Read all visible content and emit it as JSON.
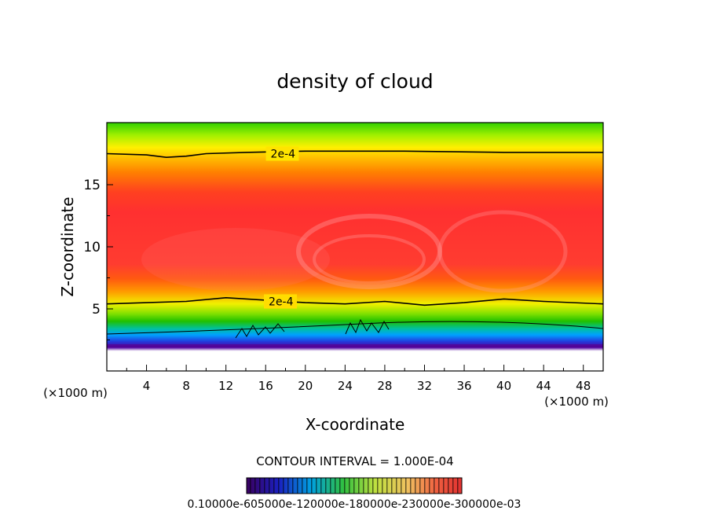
{
  "chart_data": {
    "type": "heatmap",
    "title": "density of cloud",
    "xlabel": "X-coordinate",
    "ylabel": "Z-coordinate",
    "x_unit_note": "(×1000 m)",
    "x_unit_note_right": "(×1000 m)",
    "xlim": [
      0,
      50
    ],
    "ylim": [
      0,
      20
    ],
    "x_ticks": [
      4,
      8,
      12,
      16,
      20,
      24,
      28,
      32,
      36,
      40,
      44,
      48
    ],
    "y_ticks": [
      5,
      10,
      15
    ],
    "colormap": [
      "#5a0080",
      "#2020d0",
      "#00a0ff",
      "#20c000",
      "#90e000",
      "#ffff00",
      "#ffb000",
      "#ff6a00",
      "#ff3030"
    ],
    "contour_labels": [
      {
        "text": "2e-4",
        "x": 16.5,
        "z": 17.5
      },
      {
        "text": "2e-4",
        "x": 16.3,
        "z": 5.6
      }
    ],
    "upper_contour_z": [
      [
        0,
        17.5
      ],
      [
        4,
        17.4
      ],
      [
        6,
        17.2
      ],
      [
        8,
        17.3
      ],
      [
        10,
        17.5
      ],
      [
        14,
        17.6
      ],
      [
        20,
        17.7
      ],
      [
        30,
        17.7
      ],
      [
        40,
        17.6
      ],
      [
        50,
        17.6
      ]
    ],
    "lower_contour_z": [
      [
        0,
        5.4
      ],
      [
        4,
        5.5
      ],
      [
        8,
        5.6
      ],
      [
        12,
        5.9
      ],
      [
        16,
        5.7
      ],
      [
        20,
        5.5
      ],
      [
        24,
        5.4
      ],
      [
        28,
        5.6
      ],
      [
        32,
        5.3
      ],
      [
        36,
        5.5
      ],
      [
        40,
        5.8
      ],
      [
        44,
        5.6
      ],
      [
        50,
        5.4
      ]
    ],
    "colorbar_tick_labels": "0.10000e-605000e-120000e-180000e-230000e-300000e-03",
    "contour_interval": "CONTOUR INTERVAL = 1.000E-04"
  }
}
